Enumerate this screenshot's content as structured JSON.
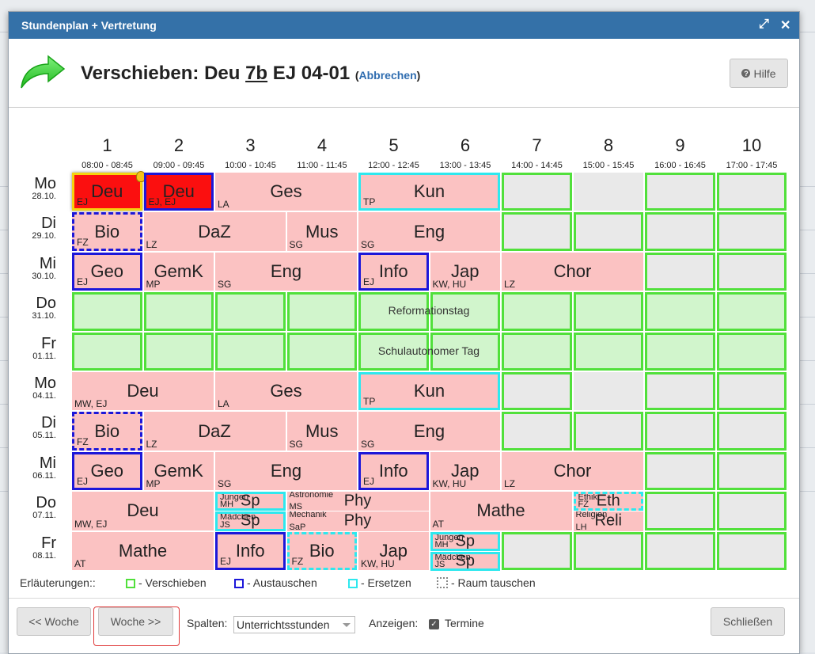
{
  "window": {
    "title": "Stundenplan + Vertretung"
  },
  "header": {
    "prefix": "Verschieben: Deu ",
    "klass": "7b",
    "suffix": " EJ 04-01 ",
    "open_paren": "(",
    "cancel_link": "Abbrechen",
    "close_paren": ")",
    "help_label": "Hilfe"
  },
  "columns": [
    {
      "num": "1",
      "time": "08:00 - 08:45"
    },
    {
      "num": "2",
      "time": "09:00 - 09:45"
    },
    {
      "num": "3",
      "time": "10:00 - 10:45"
    },
    {
      "num": "4",
      "time": "11:00 - 11:45"
    },
    {
      "num": "5",
      "time": "12:00 - 12:45"
    },
    {
      "num": "6",
      "time": "13:00 - 13:45"
    },
    {
      "num": "7",
      "time": "14:00 - 14:45"
    },
    {
      "num": "8",
      "time": "15:00 - 15:45"
    },
    {
      "num": "9",
      "time": "16:00 - 16:45"
    },
    {
      "num": "10",
      "time": "17:00 - 17:45"
    }
  ],
  "days": [
    {
      "name": "Mo",
      "date": "28.10."
    },
    {
      "name": "Di",
      "date": "29.10."
    },
    {
      "name": "Mi",
      "date": "30.10."
    },
    {
      "name": "Do",
      "date": "31.10."
    },
    {
      "name": "Fr",
      "date": "01.11."
    },
    {
      "name": "Mo",
      "date": "04.11."
    },
    {
      "name": "Di",
      "date": "05.11."
    },
    {
      "name": "Mi",
      "date": "06.11."
    },
    {
      "name": "Do",
      "date": "07.11."
    },
    {
      "name": "Fr",
      "date": "08.11."
    }
  ],
  "cells": [
    {
      "row": 0,
      "col": 0,
      "span": 1,
      "subject": "Deu",
      "teacher": "EJ",
      "style": "red yellow",
      "icon": "lightbulb-icon"
    },
    {
      "row": 0,
      "col": 1,
      "span": 1,
      "subject": "Deu",
      "teacher": "EJ, EJ",
      "style": "red blue"
    },
    {
      "row": 0,
      "col": 2,
      "span": 2,
      "subject": "Ges",
      "teacher": "LA",
      "style": ""
    },
    {
      "row": 0,
      "col": 4,
      "span": 2,
      "subject": "Kun",
      "teacher": "TP",
      "style": "cyan"
    },
    {
      "row": 0,
      "col": 6,
      "span": 1,
      "subject": "",
      "teacher": "",
      "style": "greenempty"
    },
    {
      "row": 0,
      "col": 7,
      "span": 1,
      "subject": "",
      "teacher": "",
      "style": "grey"
    },
    {
      "row": 0,
      "col": 8,
      "span": 1,
      "subject": "",
      "teacher": "",
      "style": "greenempty"
    },
    {
      "row": 0,
      "col": 9,
      "span": 1,
      "subject": "",
      "teacher": "",
      "style": "greenempty"
    },
    {
      "row": 1,
      "col": 0,
      "span": 1,
      "subject": "Bio",
      "teacher": "FZ",
      "style": "bluedash"
    },
    {
      "row": 1,
      "col": 1,
      "span": 2,
      "subject": "DaZ",
      "teacher": "LZ",
      "style": ""
    },
    {
      "row": 1,
      "col": 3,
      "span": 1,
      "subject": "Mus",
      "teacher": "SG",
      "style": ""
    },
    {
      "row": 1,
      "col": 4,
      "span": 2,
      "subject": "Eng",
      "teacher": "SG",
      "style": ""
    },
    {
      "row": 1,
      "col": 6,
      "span": 1,
      "subject": "",
      "teacher": "",
      "style": "greenempty"
    },
    {
      "row": 1,
      "col": 7,
      "span": 1,
      "subject": "",
      "teacher": "",
      "style": "greenempty"
    },
    {
      "row": 1,
      "col": 8,
      "span": 1,
      "subject": "",
      "teacher": "",
      "style": "greenempty"
    },
    {
      "row": 1,
      "col": 9,
      "span": 1,
      "subject": "",
      "teacher": "",
      "style": "greenempty"
    },
    {
      "row": 2,
      "col": 0,
      "span": 1,
      "subject": "Geo",
      "teacher": "EJ",
      "style": "blue"
    },
    {
      "row": 2,
      "col": 1,
      "span": 1,
      "subject": "GemK",
      "teacher": "MP",
      "style": ""
    },
    {
      "row": 2,
      "col": 2,
      "span": 2,
      "subject": "Eng",
      "teacher": "SG",
      "style": ""
    },
    {
      "row": 2,
      "col": 4,
      "span": 1,
      "subject": "Info",
      "teacher": "EJ",
      "style": "blue"
    },
    {
      "row": 2,
      "col": 5,
      "span": 1,
      "subject": "Jap",
      "teacher": "KW, HU",
      "style": ""
    },
    {
      "row": 2,
      "col": 6,
      "span": 2,
      "subject": "Chor",
      "teacher": "LZ",
      "style": ""
    },
    {
      "row": 2,
      "col": 8,
      "span": 1,
      "subject": "",
      "teacher": "",
      "style": "greenempty"
    },
    {
      "row": 2,
      "col": 9,
      "span": 1,
      "subject": "",
      "teacher": "",
      "style": "greenempty"
    },
    {
      "row": 5,
      "col": 0,
      "span": 2,
      "subject": "Deu",
      "teacher": "MW, EJ",
      "style": ""
    },
    {
      "row": 5,
      "col": 2,
      "span": 2,
      "subject": "Ges",
      "teacher": "LA",
      "style": ""
    },
    {
      "row": 5,
      "col": 4,
      "span": 2,
      "subject": "Kun",
      "teacher": "TP",
      "style": "cyan"
    },
    {
      "row": 5,
      "col": 6,
      "span": 1,
      "subject": "",
      "teacher": "",
      "style": "greenempty"
    },
    {
      "row": 5,
      "col": 7,
      "span": 1,
      "subject": "",
      "teacher": "",
      "style": "grey"
    },
    {
      "row": 5,
      "col": 8,
      "span": 1,
      "subject": "",
      "teacher": "",
      "style": "greenempty"
    },
    {
      "row": 5,
      "col": 9,
      "span": 1,
      "subject": "",
      "teacher": "",
      "style": "greenempty"
    },
    {
      "row": 6,
      "col": 0,
      "span": 1,
      "subject": "Bio",
      "teacher": "FZ",
      "style": "bluedash"
    },
    {
      "row": 6,
      "col": 1,
      "span": 2,
      "subject": "DaZ",
      "teacher": "LZ",
      "style": ""
    },
    {
      "row": 6,
      "col": 3,
      "span": 1,
      "subject": "Mus",
      "teacher": "SG",
      "style": ""
    },
    {
      "row": 6,
      "col": 4,
      "span": 2,
      "subject": "Eng",
      "teacher": "SG",
      "style": ""
    },
    {
      "row": 6,
      "col": 6,
      "span": 1,
      "subject": "",
      "teacher": "",
      "style": "greenempty"
    },
    {
      "row": 6,
      "col": 7,
      "span": 1,
      "subject": "",
      "teacher": "",
      "style": "greenempty"
    },
    {
      "row": 6,
      "col": 8,
      "span": 1,
      "subject": "",
      "teacher": "",
      "style": "greenempty"
    },
    {
      "row": 6,
      "col": 9,
      "span": 1,
      "subject": "",
      "teacher": "",
      "style": "greenempty"
    },
    {
      "row": 7,
      "col": 0,
      "span": 1,
      "subject": "Geo",
      "teacher": "EJ",
      "style": "blue"
    },
    {
      "row": 7,
      "col": 1,
      "span": 1,
      "subject": "GemK",
      "teacher": "MP",
      "style": ""
    },
    {
      "row": 7,
      "col": 2,
      "span": 2,
      "subject": "Eng",
      "teacher": "SG",
      "style": ""
    },
    {
      "row": 7,
      "col": 4,
      "span": 1,
      "subject": "Info",
      "teacher": "EJ",
      "style": "blue"
    },
    {
      "row": 7,
      "col": 5,
      "span": 1,
      "subject": "Jap",
      "teacher": "KW, HU",
      "style": ""
    },
    {
      "row": 7,
      "col": 6,
      "span": 2,
      "subject": "Chor",
      "teacher": "LZ",
      "style": ""
    },
    {
      "row": 7,
      "col": 8,
      "span": 1,
      "subject": "",
      "teacher": "",
      "style": "greenempty"
    },
    {
      "row": 7,
      "col": 9,
      "span": 1,
      "subject": "",
      "teacher": "",
      "style": "greenempty"
    },
    {
      "row": 8,
      "col": 0,
      "span": 2,
      "subject": "Deu",
      "teacher": "MW, EJ",
      "style": ""
    },
    {
      "row": 8,
      "col": 5,
      "span": 2,
      "subject": "Mathe",
      "teacher": "AT",
      "style": ""
    },
    {
      "row": 8,
      "col": 8,
      "span": 1,
      "subject": "",
      "teacher": "",
      "style": "greenempty"
    },
    {
      "row": 8,
      "col": 9,
      "span": 1,
      "subject": "",
      "teacher": "",
      "style": "greenempty"
    },
    {
      "row": 9,
      "col": 0,
      "span": 2,
      "subject": "Mathe",
      "teacher": "AT",
      "style": ""
    },
    {
      "row": 9,
      "col": 2,
      "span": 1,
      "subject": "Info",
      "teacher": "EJ",
      "style": "blue"
    },
    {
      "row": 9,
      "col": 3,
      "span": 1,
      "subject": "Bio",
      "teacher": "FZ",
      "style": "cyandash"
    },
    {
      "row": 9,
      "col": 4,
      "span": 1,
      "subject": "Jap",
      "teacher": "KW, HU",
      "style": ""
    },
    {
      "row": 9,
      "col": 6,
      "span": 1,
      "subject": "",
      "teacher": "",
      "style": "greenempty"
    },
    {
      "row": 9,
      "col": 7,
      "span": 1,
      "subject": "",
      "teacher": "",
      "style": "greenempty"
    },
    {
      "row": 9,
      "col": 8,
      "span": 1,
      "subject": "",
      "teacher": "",
      "style": "greenempty"
    },
    {
      "row": 9,
      "col": 9,
      "span": 1,
      "subject": "",
      "teacher": "",
      "style": "greenempty"
    }
  ],
  "halfcells": [
    {
      "row": 8,
      "col": 2,
      "span": 1,
      "half": 0,
      "subject": "Sp",
      "top": "Jungen",
      "teacher": "MH",
      "style": "cyan"
    },
    {
      "row": 8,
      "col": 2,
      "span": 1,
      "half": 1,
      "subject": "Sp",
      "top": "Mädchen",
      "teacher": "JS",
      "style": "cyan"
    },
    {
      "row": 8,
      "col": 3,
      "span": 2,
      "half": 0,
      "subject": "Phy",
      "top": "Astronomie",
      "teacher": "MS",
      "style": ""
    },
    {
      "row": 8,
      "col": 3,
      "span": 2,
      "half": 1,
      "subject": "Phy",
      "top": "Mechanik",
      "teacher": "SaP",
      "style": ""
    },
    {
      "row": 8,
      "col": 7,
      "span": 1,
      "half": 0,
      "subject": "Eth",
      "top": "Ethik",
      "teacher": "FZ",
      "style": "cyandash"
    },
    {
      "row": 8,
      "col": 7,
      "span": 1,
      "half": 1,
      "subject": "Reli",
      "top": "Religion",
      "teacher": "LH",
      "style": ""
    },
    {
      "row": 9,
      "col": 5,
      "span": 1,
      "half": 0,
      "subject": "Sp",
      "top": "Jungen",
      "teacher": "MH",
      "style": "cyan"
    },
    {
      "row": 9,
      "col": 5,
      "span": 1,
      "half": 1,
      "subject": "Sp",
      "top": "Mädchen",
      "teacher": "JS",
      "style": "cyan"
    }
  ],
  "holidays": [
    {
      "row": 3,
      "text": "Reformationstag"
    },
    {
      "row": 4,
      "text": "Schulautonomer Tag"
    }
  ],
  "legend": {
    "title": "Erläuterungen::",
    "move": "- Verschieben",
    "swap": "- Austauschen",
    "replace": "- Ersetzen",
    "room": "- Raum tauschen",
    "colors": {
      "move": "#51e03b",
      "swap": "#1c17d9",
      "replace": "#2ee8ee",
      "room": "#888888"
    }
  },
  "footer": {
    "prev_week": "<< Woche",
    "next_week": "Woche >>",
    "columns_label": "Spalten:",
    "columns_value": "Unterrichtsstunden",
    "show_label": "Anzeigen:",
    "events_label": "Termine",
    "events_checked": true,
    "close_label": "Schließen"
  }
}
